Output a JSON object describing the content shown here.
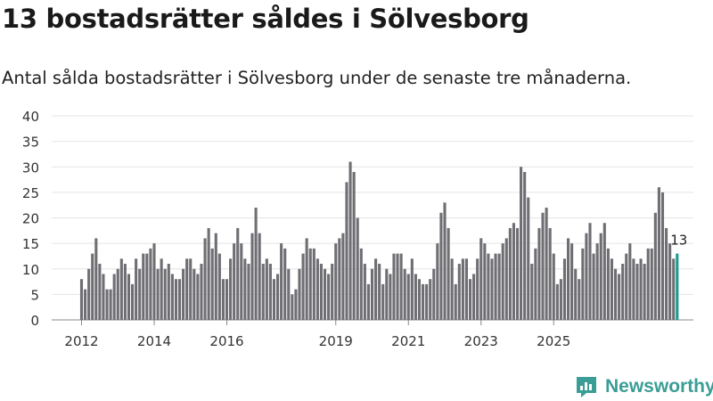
{
  "header": {
    "title": "13 bostadsrätter såldes i Sölvesborg",
    "subtitle": "Antal sålda bostadsrätter i Sölvesborg under de senaste tre månaderna."
  },
  "chart_data": {
    "type": "bar",
    "title": "13 bostadsrätter såldes i Sölvesborg",
    "subtitle": "Antal sålda bostadsrätter i Sölvesborg under de senaste tre månaderna.",
    "xlabel": "",
    "ylabel": "",
    "ylim": [
      0,
      40
    ],
    "yticks": [
      "0",
      "5",
      "10",
      "15",
      "20",
      "25",
      "30",
      "35",
      "40"
    ],
    "xticks": [
      {
        "label": "2012",
        "index": 0
      },
      {
        "label": "2014",
        "index": 20
      },
      {
        "label": "2016",
        "index": 40
      },
      {
        "label": "2019",
        "index": 70
      },
      {
        "label": "2021",
        "index": 90
      },
      {
        "label": "2023",
        "index": 110
      },
      {
        "label": "2025",
        "index": 130
      }
    ],
    "values": [
      8,
      6,
      10,
      13,
      16,
      11,
      9,
      6,
      6,
      9,
      10,
      12,
      11,
      9,
      7,
      12,
      10,
      13,
      13,
      14,
      15,
      10,
      12,
      10,
      11,
      9,
      8,
      8,
      10,
      12,
      12,
      10,
      9,
      11,
      16,
      18,
      14,
      17,
      13,
      8,
      8,
      12,
      15,
      18,
      15,
      12,
      11,
      17,
      22,
      17,
      11,
      12,
      11,
      8,
      9,
      15,
      14,
      10,
      5,
      6,
      10,
      13,
      16,
      14,
      14,
      12,
      11,
      10,
      9,
      11,
      15,
      16,
      17,
      27,
      31,
      29,
      20,
      14,
      11,
      7,
      10,
      12,
      11,
      7,
      10,
      9,
      13,
      13,
      13,
      10,
      9,
      12,
      9,
      8,
      7,
      7,
      8,
      10,
      15,
      21,
      23,
      18,
      12,
      7,
      11,
      12,
      12,
      8,
      9,
      12,
      16,
      15,
      13,
      12,
      13,
      13,
      15,
      16,
      18,
      19,
      18,
      30,
      29,
      24,
      11,
      14,
      18,
      21,
      22,
      18,
      13,
      7,
      8,
      12,
      16,
      15,
      10,
      8,
      14,
      17,
      19,
      13,
      15,
      17,
      19,
      14,
      12,
      10,
      9,
      11,
      13,
      15,
      12,
      11,
      12,
      11,
      14,
      14,
      21,
      26,
      25,
      18,
      15,
      12,
      13
    ],
    "highlight": {
      "index": 164,
      "value": 13,
      "label": "13",
      "color": "#1a9a92"
    },
    "bar_color": "#6e6e73",
    "gridlines": true
  },
  "brand": {
    "name": "Newsworthy",
    "icon": "newsworthy-logo-icon",
    "color": "#3a9e96"
  }
}
